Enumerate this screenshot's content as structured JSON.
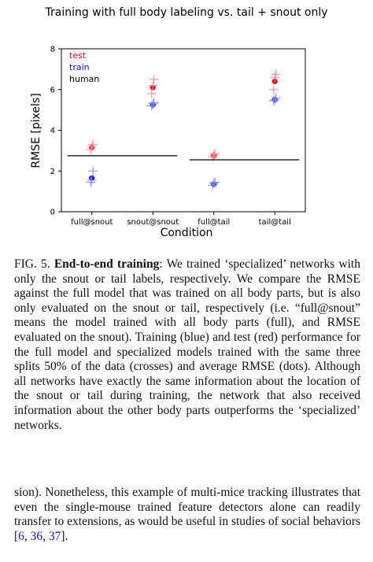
{
  "chart_data": {
    "type": "scatter",
    "title": "Training with full body labeling vs. tail + snout only",
    "xlabel": "Condition",
    "ylabel": "RMSE [pixels]",
    "categories": [
      "full@snout",
      "snout@snout",
      "full@tail",
      "tail@tail"
    ],
    "ylim": [
      0,
      8
    ],
    "yticks": [
      0,
      2,
      4,
      6,
      8
    ],
    "legend": {
      "placement": "top-left",
      "entries": [
        "test",
        "train",
        "human"
      ]
    },
    "colors": {
      "test": "#e8101c",
      "train": "#1414d0",
      "human": "#000000"
    },
    "series": [
      {
        "name": "test",
        "kind": "average",
        "values": [
          3.15,
          6.1,
          2.75,
          6.4
        ]
      },
      {
        "name": "train",
        "kind": "average",
        "values": [
          1.65,
          5.25,
          1.35,
          5.5
        ]
      },
      {
        "name": "test",
        "kind": "splits",
        "values": [
          [
            3.05,
            3.2,
            3.3
          ],
          [
            5.8,
            6.2,
            6.5
          ],
          [
            2.7,
            2.8,
            2.85
          ],
          [
            6.0,
            6.6,
            6.75
          ]
        ]
      },
      {
        "name": "train",
        "kind": "splits",
        "values": [
          [
            1.45,
            1.55,
            2.0
          ],
          [
            5.2,
            5.3,
            5.35
          ],
          [
            1.3,
            1.4,
            1.45
          ],
          [
            5.45,
            5.5,
            5.6
          ]
        ]
      },
      {
        "name": "human",
        "kind": "level",
        "values": [
          2.75,
          2.75,
          2.55,
          2.55
        ]
      }
    ]
  },
  "caption": {
    "label": "FIG. 5.",
    "bold_title": "End-to-end training",
    "text": ": We trained ‘specialized’ networks with only the snout or tail labels, respectively. We compare the RMSE against the full model that was trained on all body parts, but is also only evaluated on the snout or tail, respectively (i.e. “full@snout” means the model trained with all body parts (full), and RMSE evaluated on the snout). Training (blue) and test (red) performance for the full model and specialized models trained with the same three splits 50% of the data (crosses) and average RMSE (dots). Although all networks have exactly the same information about the location of the snout or tail during training, the network that also received information about the other body parts outperforms the ‘specialized’ networks."
  },
  "body": {
    "text_before": "sion). Nonetheless, this example of multi-mice tracking illustrates that even the single-mouse trained feature detectors alone can readily transfer to extensions, as would be useful in studies of social behaviors [",
    "refs": [
      "6",
      "36",
      "37"
    ],
    "sep": ", ",
    "text_after": "]."
  }
}
